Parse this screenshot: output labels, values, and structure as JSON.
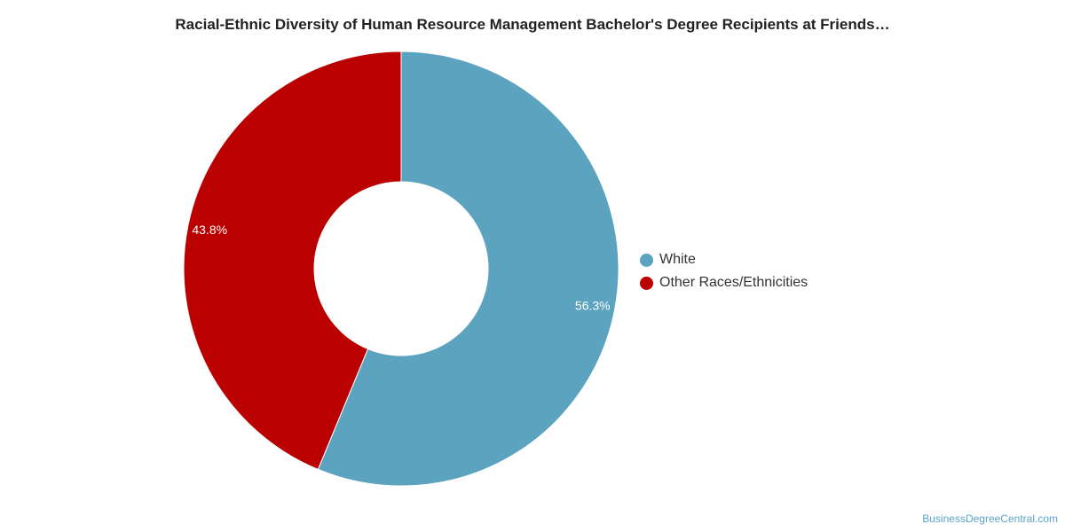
{
  "chart_data": {
    "type": "pie",
    "title": "Racial-Ethnic Diversity of Human Resource Management Bachelor's Degree Recipients at Friends…",
    "donut": true,
    "legend_position": "right",
    "slices": [
      {
        "name": "White",
        "value": 56.3,
        "label": "56.3%",
        "color": "#5ca3c0"
      },
      {
        "name": "Other Races/Ethnicities",
        "value": 43.8,
        "label": "43.8%",
        "color": "#bb0000"
      }
    ]
  },
  "source": "BusinessDegreeCentral.com"
}
